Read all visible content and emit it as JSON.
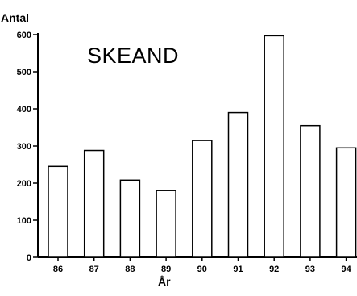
{
  "chart_data": {
    "type": "bar",
    "title": "SKEAND",
    "xlabel": "År",
    "ylabel": "Antal",
    "categories": [
      "86",
      "87",
      "88",
      "89",
      "90",
      "91",
      "92",
      "93",
      "94"
    ],
    "values": [
      245,
      288,
      208,
      180,
      315,
      390,
      597,
      355,
      295
    ],
    "ylim": [
      0,
      600
    ],
    "yticks": [
      0,
      100,
      200,
      300,
      400,
      500,
      600
    ],
    "yticklabels": [
      "0",
      "100",
      "200",
      "300",
      "400",
      "500",
      "600"
    ],
    "grid": false,
    "legend": "none",
    "colors": {
      "bar_fill": "#ffffff",
      "bar_stroke": "#000000",
      "axis": "#000000"
    }
  }
}
